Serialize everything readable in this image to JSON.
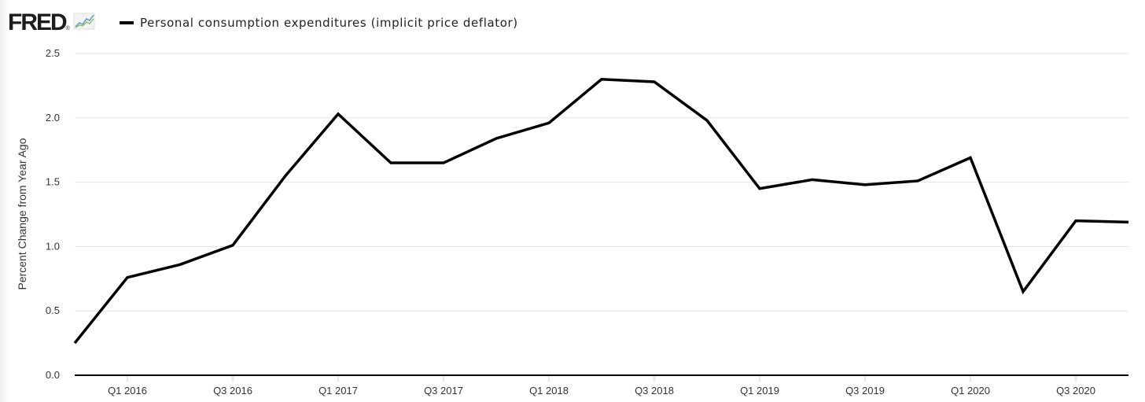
{
  "header": {
    "logo_text": "FRED",
    "logo_mark": "®",
    "logo_icon": "line-graph-icon"
  },
  "legend": {
    "series_label": "Personal consumption expenditures (implicit price deflator)",
    "swatch_color": "#000000"
  },
  "chart_data": {
    "type": "line",
    "title": "",
    "xlabel": "",
    "ylabel": "Percent Change from Year Ago",
    "ylim": [
      0,
      2.5
    ],
    "yticks": [
      0.0,
      0.5,
      1.0,
      1.5,
      2.0,
      2.5
    ],
    "ytick_labels": [
      "0.0",
      "0.5",
      "1.0",
      "1.5",
      "2.0",
      "2.5"
    ],
    "grid": true,
    "legend_position": "top-left",
    "x": [
      "Q4 2015",
      "Q1 2016",
      "Q2 2016",
      "Q3 2016",
      "Q4 2016",
      "Q1 2017",
      "Q2 2017",
      "Q3 2017",
      "Q4 2017",
      "Q1 2018",
      "Q2 2018",
      "Q3 2018",
      "Q4 2018",
      "Q1 2019",
      "Q2 2019",
      "Q3 2019",
      "Q4 2019",
      "Q1 2020",
      "Q2 2020",
      "Q3 2020",
      "Q4 2020"
    ],
    "xtick_labels": [
      "Q1 2016",
      "Q3 2016",
      "Q1 2017",
      "Q3 2017",
      "Q1 2018",
      "Q3 2018",
      "Q1 2019",
      "Q3 2019",
      "Q1 2020",
      "Q3 2020"
    ],
    "series": [
      {
        "name": "Personal consumption expenditures (implicit price deflator)",
        "color": "#000000",
        "values": [
          0.25,
          0.76,
          0.86,
          1.01,
          1.55,
          2.03,
          1.65,
          1.65,
          1.84,
          1.96,
          2.3,
          2.28,
          1.98,
          1.45,
          1.52,
          1.48,
          1.51,
          1.69,
          0.65,
          1.2,
          1.19
        ]
      }
    ]
  }
}
